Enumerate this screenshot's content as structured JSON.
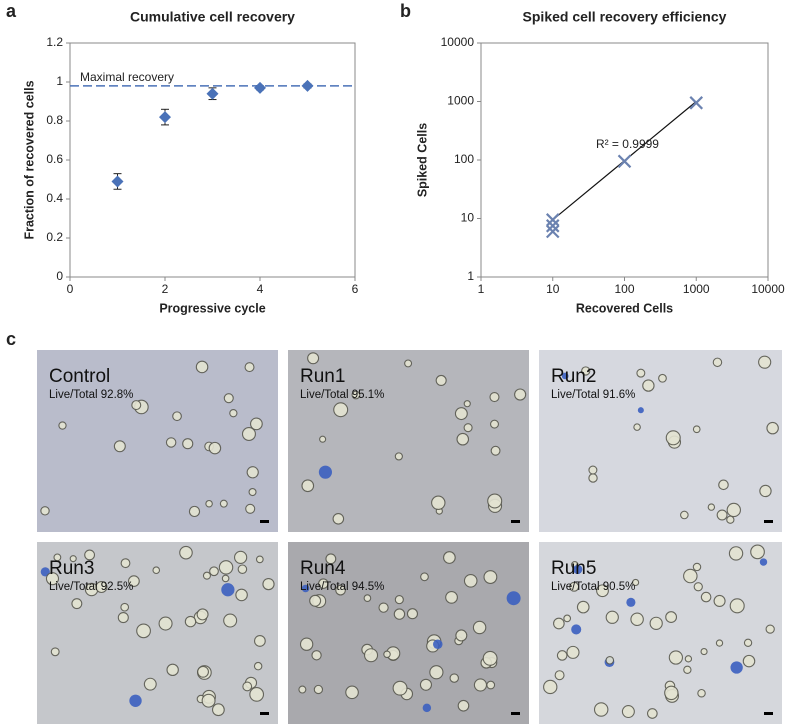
{
  "panels": {
    "a": "a",
    "b": "b",
    "c": "c"
  },
  "chart_data": [
    {
      "type": "scatter",
      "title": "Cumulative cell recovery",
      "x_label": "Progressive cycle",
      "y_label": "Fraction of recovered cells",
      "x": [
        1,
        2,
        3,
        4,
        5
      ],
      "values": [
        0.49,
        0.82,
        0.94,
        0.97,
        0.98
      ],
      "errors": [
        0.04,
        0.04,
        0.03,
        0.01,
        0.01
      ],
      "color": "#4a72b8",
      "marker": "diamond",
      "xlim": [
        0,
        6
      ],
      "xticks": [
        0,
        2,
        4,
        6
      ],
      "ylim": [
        0,
        1.2
      ],
      "yticks": [
        0,
        0.2,
        0.4,
        0.6,
        0.8,
        1,
        1.2
      ],
      "reference_line": {
        "value": 0.98,
        "label": "Maximal recovery",
        "color": "#4a72b8"
      }
    },
    {
      "type": "scatter",
      "title": "Spiked cell recovery efficiency",
      "x_label": "Recovered Cells",
      "y_label": "Spiked Cells",
      "x": [
        10,
        10,
        10,
        100,
        1000
      ],
      "values": [
        9.5,
        7.5,
        6,
        95,
        950
      ],
      "color": "#6b82b0",
      "marker": "x",
      "log_scale": true,
      "xlim": [
        1,
        10000
      ],
      "xticks": [
        1,
        10,
        100,
        1000,
        10000
      ],
      "ylim": [
        1,
        10000
      ],
      "yticks": [
        1,
        10,
        100,
        1000,
        10000
      ],
      "trendline": {
        "x": [
          10,
          1000
        ],
        "values": [
          9.5,
          1000
        ]
      },
      "annotation": "R² = 0.9999"
    }
  ],
  "images": [
    {
      "title": "Control",
      "caption": "Live/Total 92.8%"
    },
    {
      "title": "Run1",
      "caption": "Live/Total 95.1%"
    },
    {
      "title": "Run2",
      "caption": "Live/Total 91.6%"
    },
    {
      "title": "Run3",
      "caption": "Live/Total 92.5%"
    },
    {
      "title": "Run4",
      "caption": "Live/Total 94.5%"
    },
    {
      "title": "Run5",
      "caption": "Live/Total 90.5%"
    }
  ]
}
